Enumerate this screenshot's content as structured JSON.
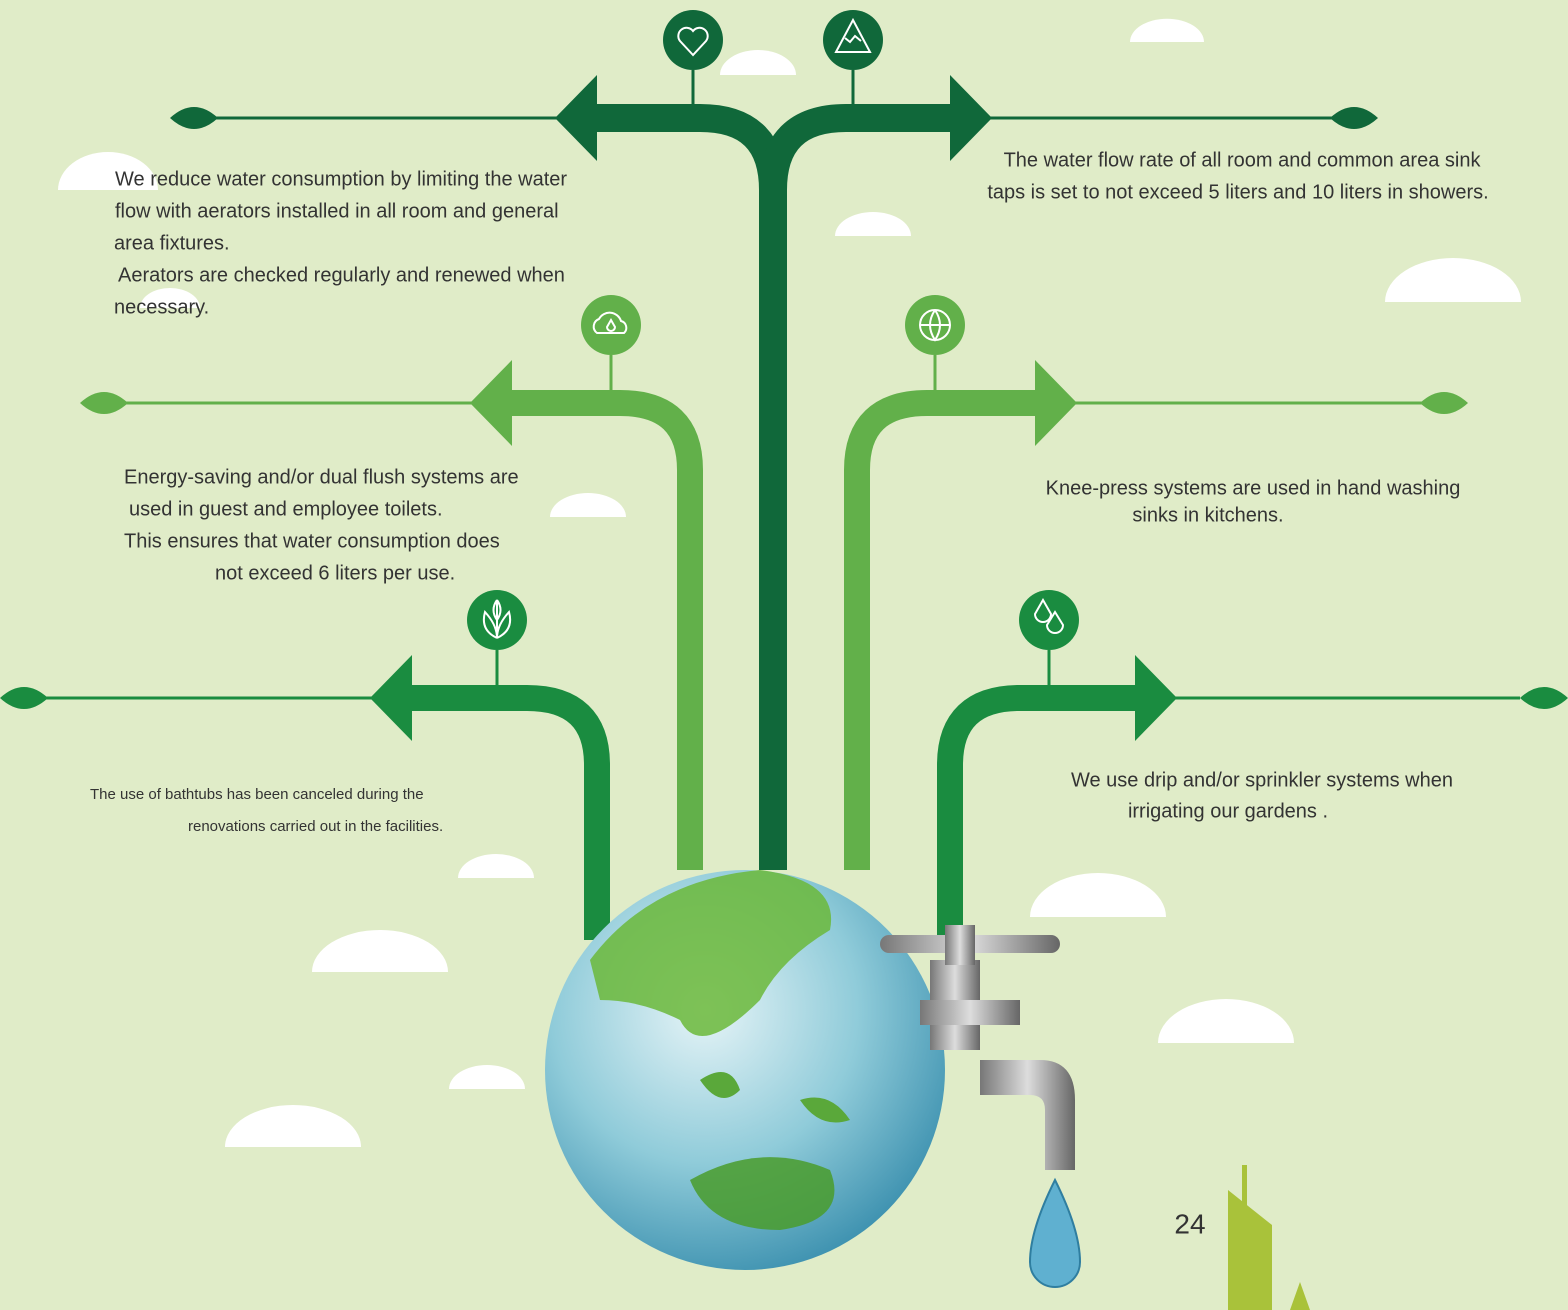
{
  "items": [
    {
      "lines": [
        "We reduce water consumption by limiting the water",
        "flow with aerators installed in all room and general",
        "area fixtures.",
        "Aerators are checked regularly and renewed when",
        "necessary."
      ]
    },
    {
      "lines": [
        "The water flow rate of all room and common area sink",
        "taps is set to not exceed 5 liters and 10 liters in showers."
      ]
    },
    {
      "lines": [
        "Energy-saving and/or dual flush systems are",
        "used in guest and employee toilets.",
        "This ensures that water consumption does",
        "not exceed 6 liters per use."
      ]
    },
    {
      "lines": [
        "Knee-press systems are used in hand washing",
        "sinks in kitchens."
      ]
    },
    {
      "lines": [
        "The use of bathtubs has been canceled during the",
        "renovations carried out in the facilities."
      ]
    },
    {
      "lines": [
        "We use drip and/or sprinkler systems when",
        "irrigating our gardens ."
      ]
    }
  ],
  "page_number": "24"
}
